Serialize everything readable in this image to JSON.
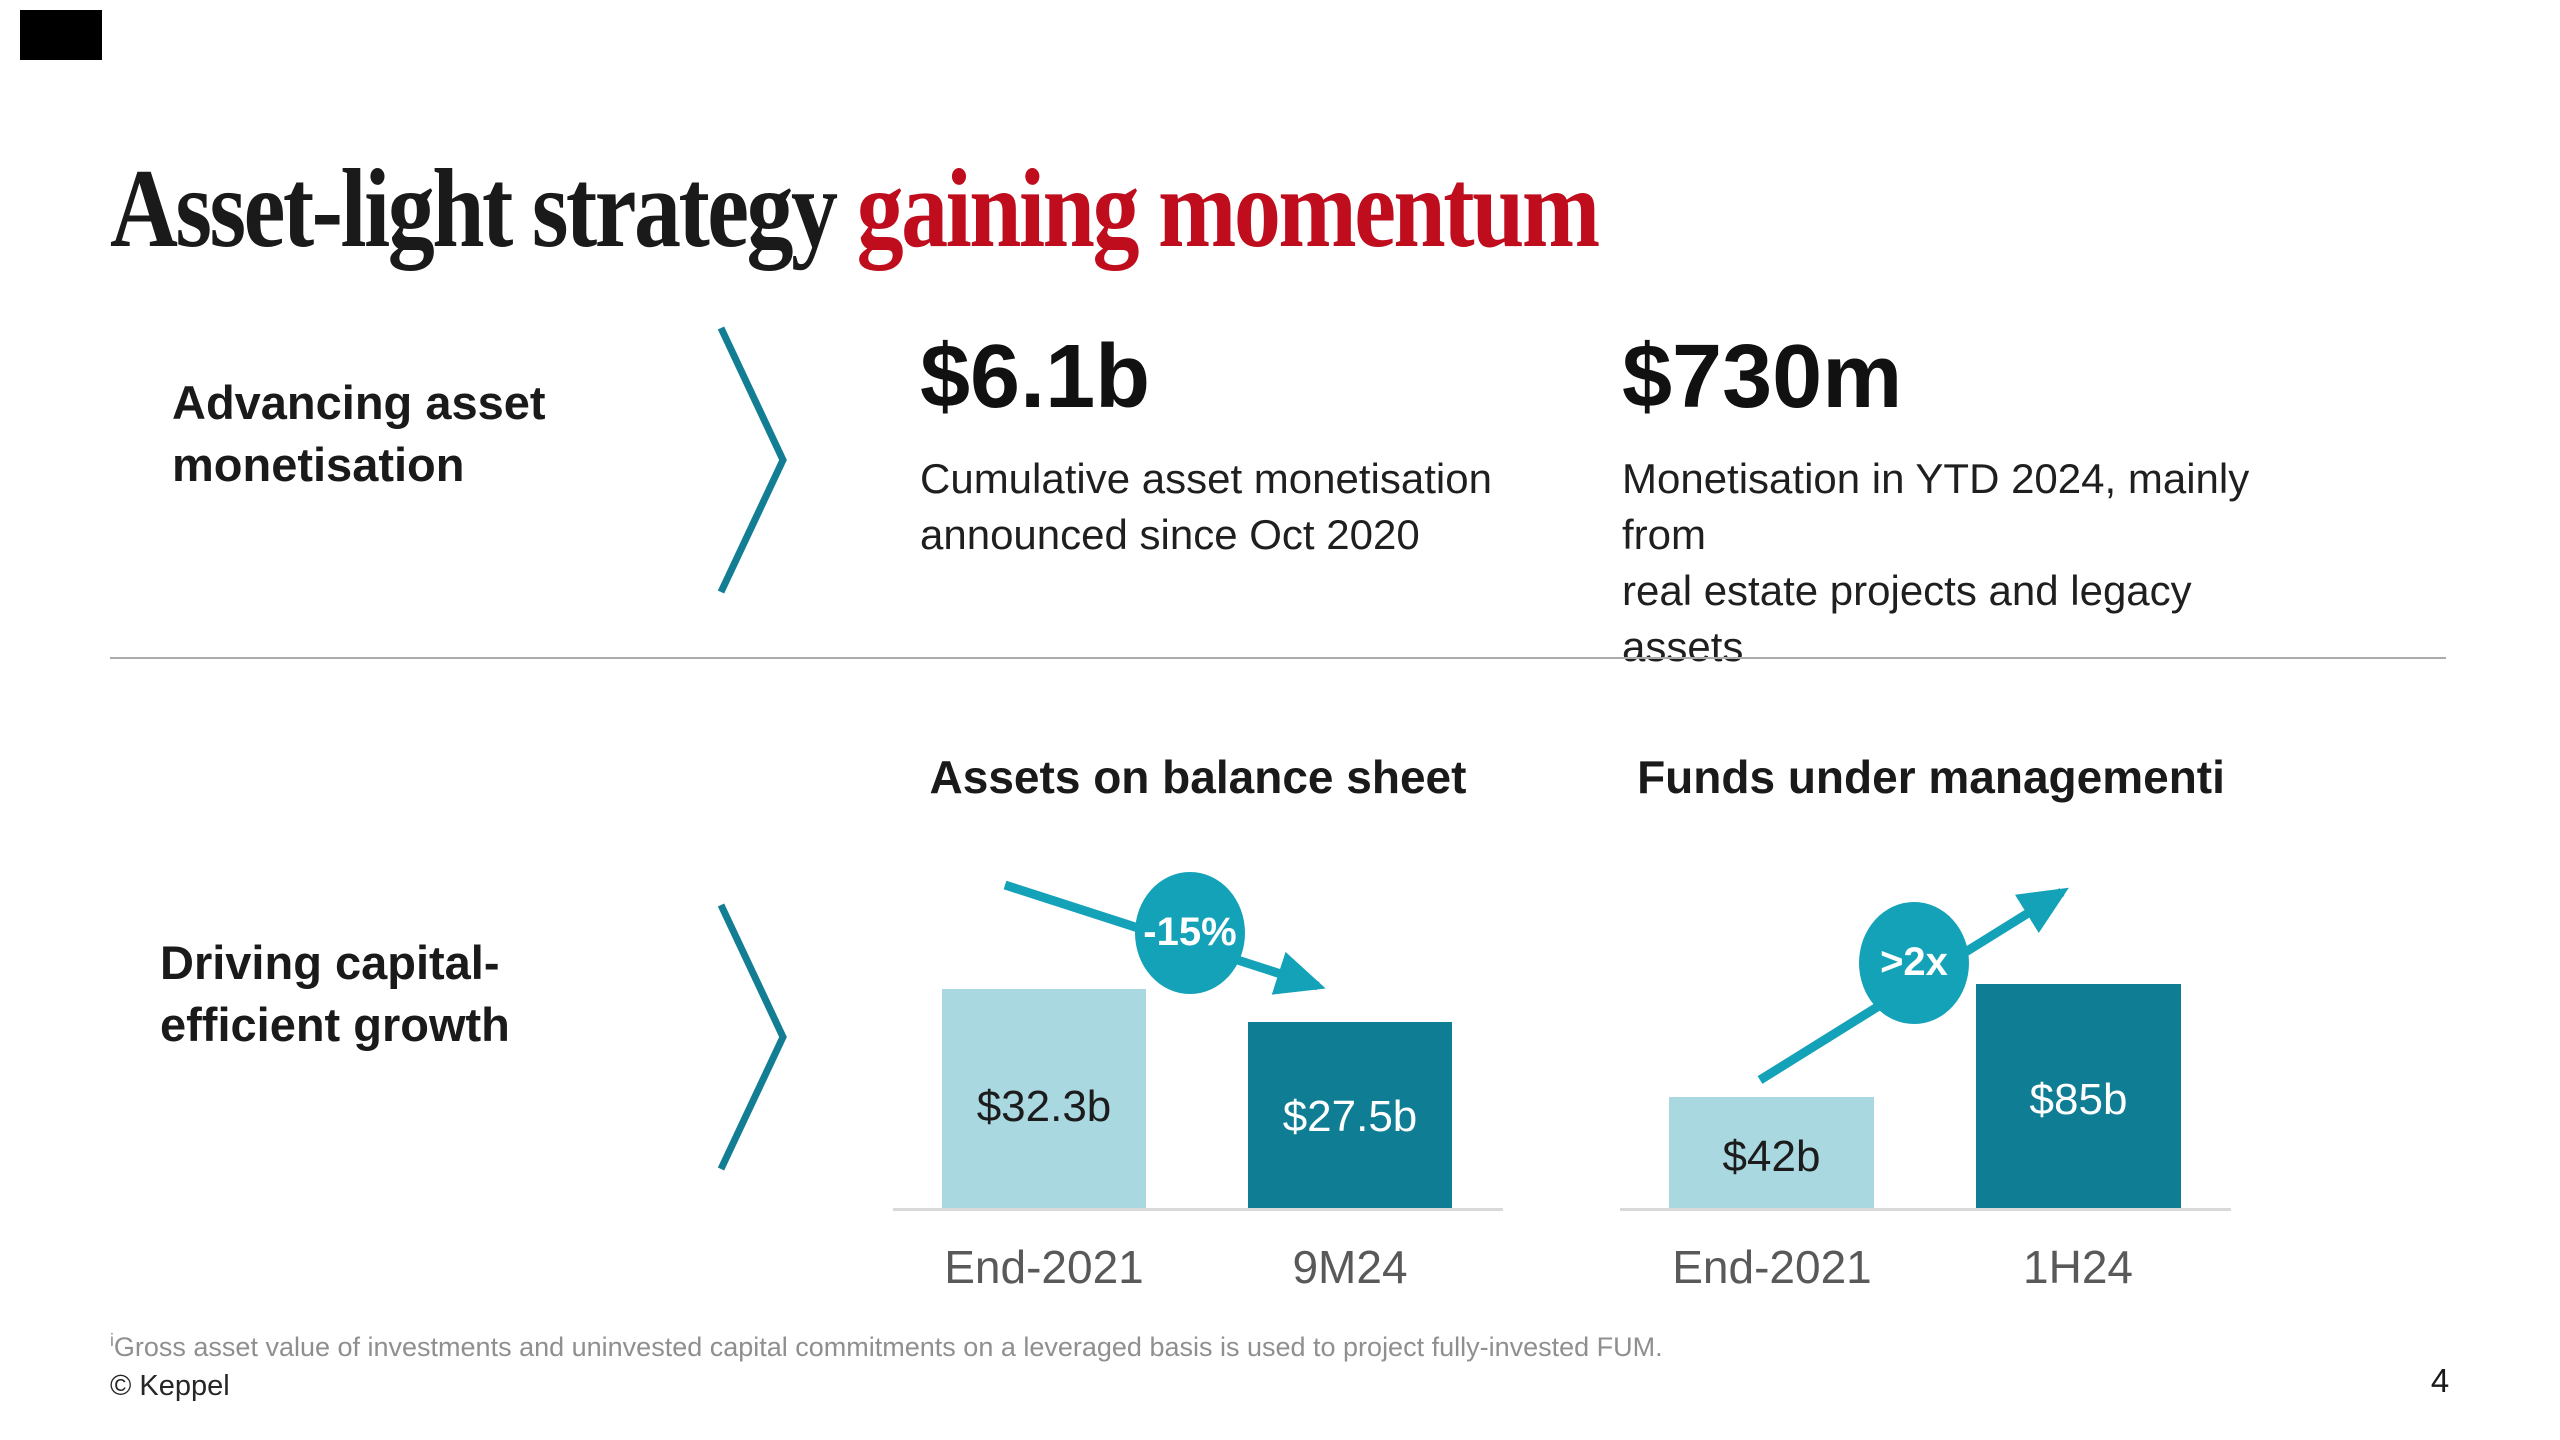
{
  "slide": {
    "title_black": "Asset-light strategy ",
    "title_red": "gaining momentum",
    "page_number": "4",
    "copyright": "© Keppel",
    "footnote_marker": "i",
    "footnote_text": "Gross asset value of investments and uninvested capital commitments on a leveraged basis is used to project fully-invested FUM."
  },
  "colors": {
    "accent_red": "#c00d1d",
    "teal_dark_bar": "#0f7d93",
    "teal_light_bar": "#a9d8e1",
    "teal_badge_arrow": "#14a2b8",
    "teal_chevron": "#137e93",
    "category_label_gray": "#595959",
    "footnote_gray": "#8f8f8f",
    "divider_gray": "#ababab",
    "baseline_gray": "#d9d9d9"
  },
  "row1": {
    "label_line1": "Advancing asset",
    "label_line2": "monetisation",
    "stats": [
      {
        "value": "$6.1b",
        "desc_line1": "Cumulative asset monetisation",
        "desc_line2": "announced since Oct 2020"
      },
      {
        "value": "$730m",
        "desc_line1": "Monetisation in YTD 2024, mainly from",
        "desc_line2": "real estate projects and legacy assets"
      }
    ]
  },
  "row2": {
    "label_line1": "Driving capital-",
    "label_line2": "efficient growth"
  },
  "chart_data": [
    {
      "type": "bar",
      "title": "Assets on balance sheet",
      "title_footnote": "",
      "categories": [
        "End-2021",
        "9M24"
      ],
      "values": [
        32.3,
        27.5
      ],
      "value_labels": [
        "$32.3b",
        "$27.5b"
      ],
      "badge": "-15%",
      "trend": "down",
      "legend": "none",
      "grid": false
    },
    {
      "type": "bar",
      "title": "Funds under management",
      "title_footnote": "i",
      "categories": [
        "End-2021",
        "1H24"
      ],
      "values": [
        42,
        85
      ],
      "value_labels": [
        "$42b",
        "$85b"
      ],
      "badge": ">2x",
      "trend": "up",
      "legend": "none",
      "grid": false
    }
  ]
}
